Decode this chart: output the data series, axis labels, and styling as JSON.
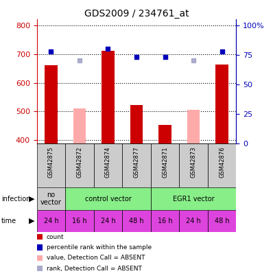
{
  "title": "GDS2009 / 234761_at",
  "samples": [
    "GSM42875",
    "GSM42872",
    "GSM42874",
    "GSM42877",
    "GSM42871",
    "GSM42873",
    "GSM42876"
  ],
  "bar_values": [
    660,
    null,
    710,
    522,
    454,
    null,
    663
  ],
  "bar_absent_values": [
    null,
    510,
    null,
    null,
    null,
    505,
    null
  ],
  "dot_values": [
    78,
    null,
    80,
    73,
    73,
    null,
    78
  ],
  "dot_absent_values": [
    null,
    70,
    null,
    null,
    null,
    70,
    null
  ],
  "bar_color": "#cc0000",
  "bar_absent_color": "#ffaaaa",
  "dot_color": "#0000bb",
  "dot_absent_color": "#aaaacc",
  "time_labels": [
    "24 h",
    "16 h",
    "24 h",
    "48 h",
    "16 h",
    "24 h",
    "48 h"
  ],
  "time_color": "#dd44dd",
  "ylim_left": [
    390,
    820
  ],
  "ylim_right": [
    0,
    105
  ],
  "yticks_left": [
    400,
    500,
    600,
    700,
    800
  ],
  "yticks_right": [
    0,
    25,
    50,
    75,
    100
  ],
  "ytick_labels_right": [
    "0",
    "25",
    "50",
    "75",
    "100%"
  ],
  "left_axis_color": "#cc0000",
  "right_axis_color": "#0000bb",
  "bg_color": "#ffffff",
  "sample_bg_color": "#cccccc",
  "legend_items": [
    {
      "label": "count",
      "color": "#cc0000"
    },
    {
      "label": "percentile rank within the sample",
      "color": "#0000bb"
    },
    {
      "label": "value, Detection Call = ABSENT",
      "color": "#ffaaaa"
    },
    {
      "label": "rank, Detection Call = ABSENT",
      "color": "#aaaacc"
    }
  ]
}
